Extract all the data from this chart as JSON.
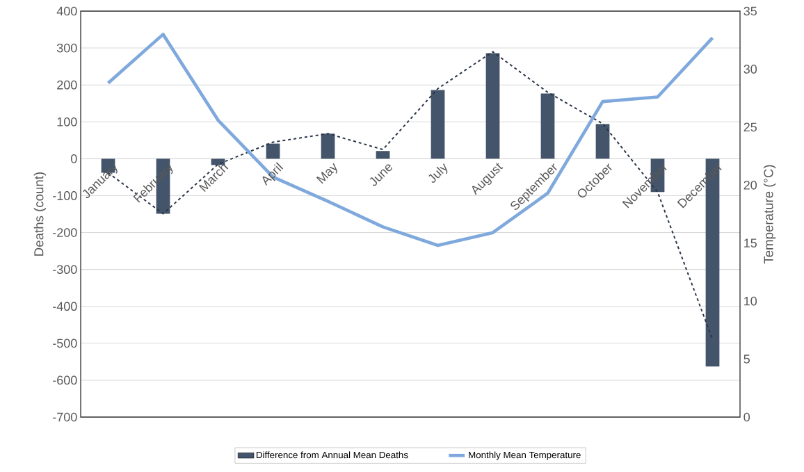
{
  "chart_data": {
    "type": "bar",
    "categories": [
      "January",
      "February",
      "March",
      "April",
      "May",
      "June",
      "July",
      "August",
      "September",
      "October",
      "November",
      "December"
    ],
    "series": [
      {
        "name": "Difference from Annual Mean Deaths",
        "color": "#44546a",
        "values": [
          -38,
          -149,
          -17,
          41,
          68,
          21,
          186,
          286,
          177,
          94,
          -90,
          -563
        ]
      },
      {
        "type": "line",
        "color": "#2b3648",
        "line_style": "dashed",
        "values": [
          -38,
          -149,
          -15,
          45,
          68,
          25,
          190,
          290,
          180,
          95,
          -90,
          -490
        ]
      },
      {
        "name": "Monthly Mean Temperature",
        "type": "line",
        "color": "#7fa9dc",
        "axis": "y2",
        "values": [
          28.8,
          33.0,
          25.6,
          20.7,
          18.6,
          16.4,
          14.8,
          15.9,
          19.3,
          27.2,
          27.6,
          32.7
        ]
      }
    ],
    "ylabel": "Deaths (count)",
    "y2label": "Temperature (°C)",
    "ylim": [
      -700,
      400
    ],
    "yticks": [
      -700,
      -600,
      -500,
      -400,
      -300,
      -200,
      -100,
      0,
      100,
      200,
      300,
      400
    ],
    "y2lim": [
      0,
      35
    ],
    "y2ticks": [
      0,
      5,
      10,
      15,
      20,
      25,
      30,
      35
    ],
    "grid": "y",
    "legend": "bottom"
  }
}
